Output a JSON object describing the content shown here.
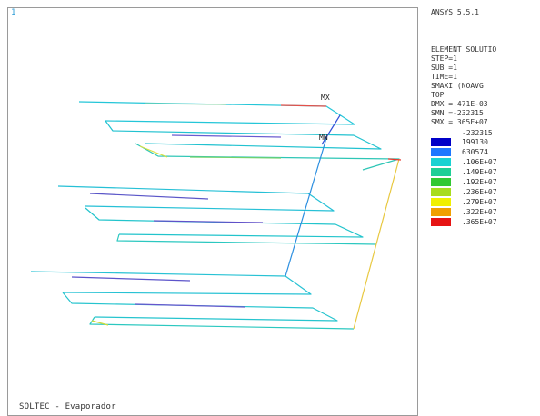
{
  "viewport": {
    "window_number": "1",
    "caption": "SOLTEC - Evaporador",
    "node_labels": [
      "MX",
      "MN"
    ]
  },
  "side_panel": {
    "program": "ANSYS 5.5.1",
    "info_lines": [
      "ELEMENT SOLUTIO",
      "STEP=1",
      "SUB =1",
      "TIME=1",
      "SMAXI    (NOAVG",
      "TOP",
      "DMX =.471E-03",
      "SMN =-232315",
      "SMX =.365E+07"
    ],
    "legend_min": "-232315",
    "legend": [
      {
        "label": "199130",
        "color": "#0000c8"
      },
      {
        "label": "630574",
        "color": "#1e78ff"
      },
      {
        "label": ".106E+07",
        "color": "#19d2d2"
      },
      {
        "label": ".149E+07",
        "color": "#1ecf96"
      },
      {
        "label": ".192E+07",
        "color": "#32c832"
      },
      {
        "label": ".236E+07",
        "color": "#a8dc1e"
      },
      {
        "label": ".279E+07",
        "color": "#f0f000"
      },
      {
        "label": ".322E+07",
        "color": "#f0a000"
      },
      {
        "label": ".365E+07",
        "color": "#e61414"
      }
    ]
  }
}
